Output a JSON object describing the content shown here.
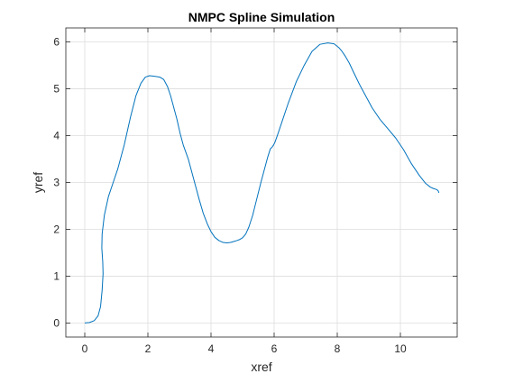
{
  "chart_data": {
    "type": "line",
    "title": "NMPC Spline Simulation",
    "xlabel": "xref",
    "ylabel": "yref",
    "xlim": [
      -0.6,
      11.8
    ],
    "ylim": [
      -0.3,
      6.3
    ],
    "xticks": [
      0,
      2,
      4,
      6,
      8,
      10
    ],
    "yticks": [
      0,
      1,
      2,
      3,
      4,
      5,
      6
    ],
    "grid": true,
    "colors": {
      "line": "#0072BD",
      "grid": "#dddddd",
      "axes": "#262626",
      "text": "#262626"
    },
    "series": [
      {
        "x": [
          0,
          0.15,
          0.3,
          0.42,
          0.5,
          0.55,
          0.58,
          0.57,
          0.54,
          0.55,
          0.62,
          0.75,
          0.9,
          1.05,
          1.25,
          1.45,
          1.62,
          1.78,
          1.92,
          2.05,
          2.18,
          2.28,
          2.38,
          2.5,
          2.62,
          2.72,
          2.82,
          2.92,
          3.02,
          3.12,
          3.2,
          3.28,
          3.38,
          3.5,
          3.62,
          3.75,
          3.88,
          4.0,
          4.12,
          4.25,
          4.38,
          4.5,
          4.62,
          4.72,
          4.82,
          4.9,
          5.0,
          5.1,
          5.2,
          5.32,
          5.45,
          5.58,
          5.7,
          5.8,
          5.88,
          5.93,
          5.98,
          6.02,
          6.1,
          6.25,
          6.45,
          6.7,
          6.95,
          7.2,
          7.45,
          7.7,
          7.9,
          8.05,
          8.15,
          8.25,
          8.38,
          8.52,
          8.7,
          8.9,
          9.1,
          9.35,
          9.6,
          9.85,
          10.1,
          10.35,
          10.6,
          10.8,
          10.95,
          11.05,
          11.15,
          11.2,
          11.22
        ],
        "y": [
          0.0,
          0.01,
          0.05,
          0.15,
          0.35,
          0.7,
          1.05,
          1.3,
          1.6,
          1.9,
          2.3,
          2.7,
          3.0,
          3.3,
          3.8,
          4.4,
          4.85,
          5.12,
          5.25,
          5.28,
          5.27,
          5.26,
          5.25,
          5.2,
          5.05,
          4.85,
          4.6,
          4.35,
          4.05,
          3.8,
          3.65,
          3.5,
          3.25,
          2.95,
          2.65,
          2.35,
          2.12,
          1.95,
          1.83,
          1.76,
          1.72,
          1.71,
          1.72,
          1.74,
          1.76,
          1.78,
          1.82,
          1.9,
          2.05,
          2.3,
          2.65,
          3.0,
          3.3,
          3.55,
          3.72,
          3.75,
          3.8,
          3.85,
          4.0,
          4.3,
          4.7,
          5.15,
          5.5,
          5.8,
          5.95,
          5.98,
          5.96,
          5.88,
          5.8,
          5.7,
          5.55,
          5.35,
          5.1,
          4.85,
          4.6,
          4.35,
          4.15,
          3.95,
          3.7,
          3.4,
          3.15,
          2.98,
          2.9,
          2.87,
          2.85,
          2.82,
          2.78
        ]
      }
    ]
  }
}
